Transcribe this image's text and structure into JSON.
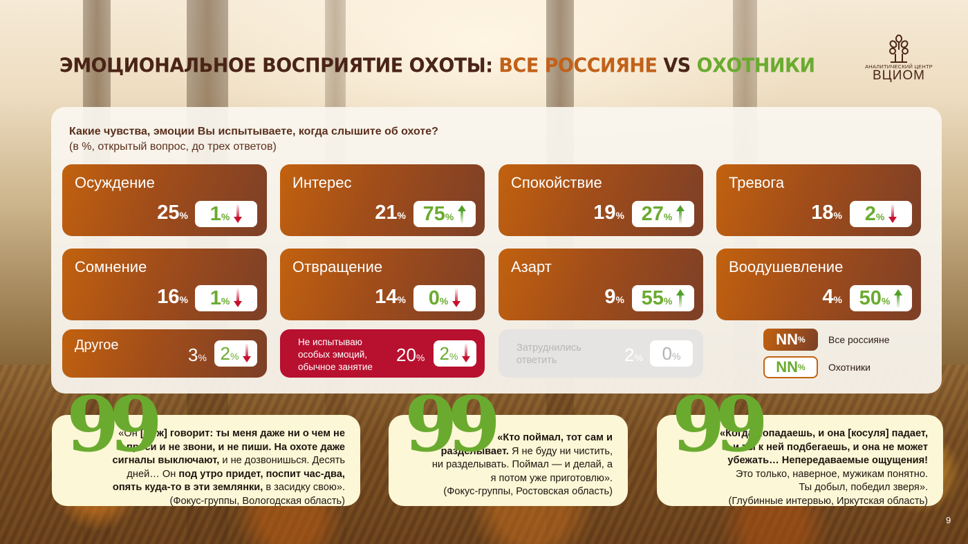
{
  "header": {
    "title_part1": "ЭМОЦИОНАЛЬНОЕ ВОСПРИЯТИЕ ОХОТЫ: ",
    "title_part2": "ВСЕ РОССИЯНЕ",
    "title_part3": " VS ",
    "title_part4": "ОХОТНИКИ",
    "logo_caption": "АНАЛИТИЧЕСКИЙ ЦЕНТР",
    "logo_name": "ВЦИОМ"
  },
  "question": {
    "text": "Какие чувства, эмоции Вы испытываете, когда слышите об охоте?",
    "note": "(в %, открытый вопрос, до трех ответов)"
  },
  "colors": {
    "brown": "#4a2417",
    "orange": "#c2611a",
    "green": "#6aab2f",
    "red": "#b8102f",
    "arrow_down": "#c8102e",
    "arrow_up": "#4fa12a"
  },
  "cards": [
    {
      "label": "Осуждение",
      "all": "25",
      "hunters": "1",
      "trend": "down"
    },
    {
      "label": "Интерес",
      "all": "21",
      "hunters": "75",
      "trend": "up"
    },
    {
      "label": "Спокойствие",
      "all": "19",
      "hunters": "27",
      "trend": "up"
    },
    {
      "label": "Тревога",
      "all": "18",
      "hunters": "2",
      "trend": "down"
    },
    {
      "label": "Сомнение",
      "all": "16",
      "hunters": "1",
      "trend": "down"
    },
    {
      "label": "Отвращение",
      "all": "14",
      "hunters": "0",
      "trend": "down"
    },
    {
      "label": "Азарт",
      "all": "9",
      "hunters": "55",
      "trend": "up"
    },
    {
      "label": "Воодушевление",
      "all": "4",
      "hunters": "50",
      "trend": "up"
    },
    {
      "label": "Другое",
      "all": "3",
      "hunters": "2",
      "trend": "down"
    },
    {
      "label_lines": [
        "Не испытываю",
        "особых эмоций,",
        "обычное занятие"
      ],
      "all": "20",
      "hunters": "2",
      "trend": "down"
    },
    {
      "label_lines": [
        "Затруднились",
        "ответить"
      ],
      "all": "2",
      "hunters": "0",
      "trend": "none"
    }
  ],
  "percent": "%",
  "legend": {
    "sample": "NN",
    "all_label": "Все россияне",
    "hunters_label": "Охотники"
  },
  "quotes": [
    {
      "lines": [
        [
          [
            "n",
            "«Он "
          ],
          [
            "b",
            "[муж] говорит: ты меня даже ни о чем не"
          ]
        ],
        [
          [
            "b",
            "проси и не звони, и не пиши. На охоте даже"
          ]
        ],
        [
          [
            "b",
            "сигналы выключают,"
          ],
          [
            "n",
            " и не дозвонишься. Десять"
          ]
        ],
        [
          [
            "n",
            "дней… Он "
          ],
          [
            "b",
            "под утро придет, поспит час-два,"
          ]
        ],
        [
          [
            "b",
            "опять куда-то в эти землянки,"
          ],
          [
            "n",
            " в засидку свою»."
          ]
        ],
        [
          [
            "n",
            "(Фокус-группы, Вологодская область)"
          ]
        ]
      ]
    },
    {
      "lines": [
        [
          [
            "b",
            "«Кто поймал, тот сам и"
          ]
        ],
        [
          [
            "b",
            "разделывает."
          ],
          [
            "n",
            " Я не буду ни чистить,"
          ]
        ],
        [
          [
            "n",
            "ни разделывать. Поймал — и делай, а"
          ]
        ],
        [
          [
            "n",
            "я потом уже приготовлю»."
          ]
        ],
        [
          [
            "n",
            "(Фокус-группы, Ростовская область)"
          ]
        ]
      ]
    },
    {
      "lines": [
        [
          [
            "b",
            "«Когда попадаешь, и она [косуля] падает,"
          ]
        ],
        [
          [
            "b",
            "и ты к ней подбегаешь, и она не может"
          ]
        ],
        [
          [
            "b",
            "убежать… Непередаваемые ощущения!"
          ]
        ],
        [
          [
            "n",
            "Это только, наверное, мужикам понятно."
          ]
        ],
        [
          [
            "n",
            "Ты добыл, победил зверя»."
          ]
        ],
        [
          [
            "n",
            "(Глубинные интервью, Иркутская область)"
          ]
        ]
      ]
    }
  ],
  "quote_mark": "99",
  "page_number": "9"
}
